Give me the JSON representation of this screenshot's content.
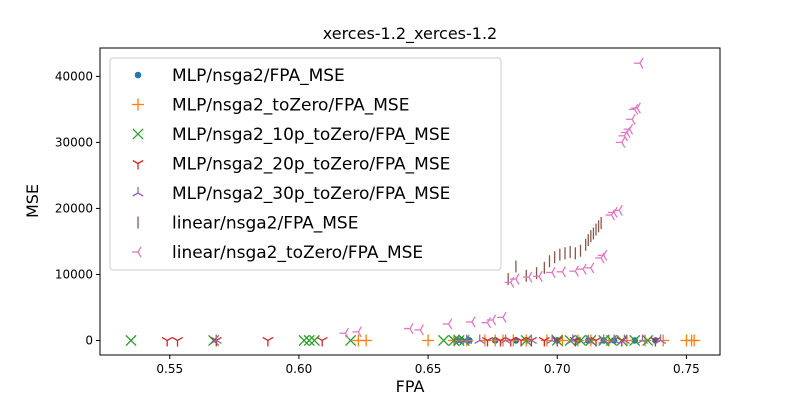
{
  "chart_data": {
    "type": "scatter",
    "title": "xerces-1.2_xerces-1.2",
    "xlabel": "FPA",
    "ylabel": "MSE",
    "xlim": [
      0.523,
      0.763
    ],
    "ylim": [
      -2200,
      44300
    ],
    "xticks": [
      0.55,
      0.6,
      0.65,
      0.7,
      0.75
    ],
    "xtick_labels": [
      "0.55",
      "0.60",
      "0.65",
      "0.70",
      "0.75"
    ],
    "yticks": [
      0,
      10000,
      20000,
      30000,
      40000
    ],
    "ytick_labels": [
      "0",
      "10000",
      "20000",
      "30000",
      "40000"
    ],
    "grid": false,
    "legend_position": "upper-left",
    "series": [
      {
        "name": "MLP/nsga2/FPA_MSE",
        "marker": "circle",
        "color": "#1f77b4",
        "points": [
          [
            0.661,
            0
          ],
          [
            0.663,
            0
          ],
          [
            0.666,
            0
          ],
          [
            0.676,
            0
          ],
          [
            0.684,
            0
          ],
          [
            0.7,
            0
          ],
          [
            0.708,
            0
          ],
          [
            0.712,
            0
          ],
          [
            0.718,
            0
          ],
          [
            0.722,
            0
          ],
          [
            0.73,
            0
          ],
          [
            0.738,
            0
          ]
        ]
      },
      {
        "name": "MLP/nsga2_toZero/FPA_MSE",
        "marker": "plus",
        "color": "#ff7f0e",
        "points": [
          [
            0.623,
            0
          ],
          [
            0.626,
            0
          ],
          [
            0.65,
            0
          ],
          [
            0.66,
            0
          ],
          [
            0.665,
            0
          ],
          [
            0.672,
            0
          ],
          [
            0.676,
            0
          ],
          [
            0.679,
            0
          ],
          [
            0.683,
            0
          ],
          [
            0.688,
            0
          ],
          [
            0.696,
            0
          ],
          [
            0.702,
            0
          ],
          [
            0.708,
            0
          ],
          [
            0.713,
            0
          ],
          [
            0.72,
            0
          ],
          [
            0.727,
            0
          ],
          [
            0.734,
            0
          ],
          [
            0.741,
            0
          ],
          [
            0.75,
            0
          ],
          [
            0.752,
            0
          ],
          [
            0.753,
            0
          ]
        ]
      },
      {
        "name": "MLP/nsga2_10p_toZero/FPA_MSE",
        "marker": "x",
        "color": "#2ca02c",
        "points": [
          [
            0.535,
            0
          ],
          [
            0.567,
            0
          ],
          [
            0.602,
            0
          ],
          [
            0.604,
            0
          ],
          [
            0.606,
            0
          ],
          [
            0.62,
            0
          ],
          [
            0.656,
            0
          ],
          [
            0.66,
            0
          ],
          [
            0.662,
            0
          ],
          [
            0.664,
            0
          ],
          [
            0.688,
            0
          ],
          [
            0.7,
            0
          ],
          [
            0.705,
            0
          ],
          [
            0.709,
            0
          ],
          [
            0.713,
            0
          ],
          [
            0.718,
            0
          ],
          [
            0.721,
            0
          ],
          [
            0.725,
            0
          ],
          [
            0.73,
            0
          ],
          [
            0.735,
            0
          ]
        ]
      },
      {
        "name": "MLP/nsga2_20p_toZero/FPA_MSE",
        "marker": "tri_down",
        "color": "#d62728",
        "points": [
          [
            0.549,
            0
          ],
          [
            0.553,
            0
          ],
          [
            0.568,
            0
          ],
          [
            0.588,
            0
          ],
          [
            0.609,
            0
          ],
          [
            0.673,
            0
          ],
          [
            0.678,
            0
          ],
          [
            0.682,
            0
          ],
          [
            0.686,
            0
          ],
          [
            0.69,
            0
          ],
          [
            0.695,
            0
          ],
          [
            0.7,
            0
          ],
          [
            0.707,
            0
          ],
          [
            0.715,
            0
          ],
          [
            0.725,
            0
          ],
          [
            0.738,
            0
          ]
        ]
      },
      {
        "name": "MLP/nsga2_30p_toZero/FPA_MSE",
        "marker": "tri_up",
        "color": "#9467bd",
        "points": [
          [
            0.568,
            0
          ],
          [
            0.662,
            0
          ],
          [
            0.665,
            0
          ],
          [
            0.67,
            0
          ],
          [
            0.68,
            0
          ],
          [
            0.69,
            0
          ],
          [
            0.698,
            0
          ],
          [
            0.706,
            0
          ],
          [
            0.712,
            0
          ],
          [
            0.718,
            0
          ],
          [
            0.722,
            0
          ],
          [
            0.726,
            0
          ],
          [
            0.733,
            0
          ],
          [
            0.74,
            0
          ]
        ]
      },
      {
        "name": "linear/nsga2/FPA_MSE",
        "marker": "vline",
        "color": "#8c564b",
        "points": [
          [
            0.681,
            9300
          ],
          [
            0.684,
            11200
          ],
          [
            0.688,
            9800
          ],
          [
            0.692,
            10200
          ],
          [
            0.695,
            11000
          ],
          [
            0.697,
            12000
          ],
          [
            0.699,
            12600
          ],
          [
            0.701,
            13000
          ],
          [
            0.703,
            13200
          ],
          [
            0.705,
            13400
          ],
          [
            0.707,
            13200
          ],
          [
            0.709,
            13600
          ],
          [
            0.711,
            14500
          ],
          [
            0.712,
            15200
          ],
          [
            0.713,
            15800
          ],
          [
            0.714,
            16200
          ],
          [
            0.715,
            16800
          ],
          [
            0.716,
            17300
          ],
          [
            0.717,
            17800
          ]
        ]
      },
      {
        "name": "linear/nsga2_toZero/FPA_MSE",
        "marker": "tri_left",
        "color": "#e377c2",
        "points": [
          [
            0.618,
            1100
          ],
          [
            0.623,
            1300
          ],
          [
            0.643,
            1800
          ],
          [
            0.647,
            1600
          ],
          [
            0.658,
            2500
          ],
          [
            0.667,
            2800
          ],
          [
            0.673,
            2700
          ],
          [
            0.675,
            3100
          ],
          [
            0.679,
            3500
          ],
          [
            0.682,
            8800
          ],
          [
            0.684,
            9300
          ],
          [
            0.689,
            9600
          ],
          [
            0.693,
            9700
          ],
          [
            0.698,
            10300
          ],
          [
            0.702,
            10400
          ],
          [
            0.707,
            10500
          ],
          [
            0.71,
            10800
          ],
          [
            0.713,
            11000
          ],
          [
            0.717,
            12500
          ],
          [
            0.718,
            12900
          ],
          [
            0.721,
            19000
          ],
          [
            0.722,
            19400
          ],
          [
            0.724,
            19700
          ],
          [
            0.725,
            30000
          ],
          [
            0.726,
            31000
          ],
          [
            0.727,
            31500
          ],
          [
            0.728,
            32000
          ],
          [
            0.729,
            33500
          ],
          [
            0.73,
            35000
          ],
          [
            0.731,
            35200
          ],
          [
            0.732,
            42000
          ]
        ]
      }
    ]
  }
}
